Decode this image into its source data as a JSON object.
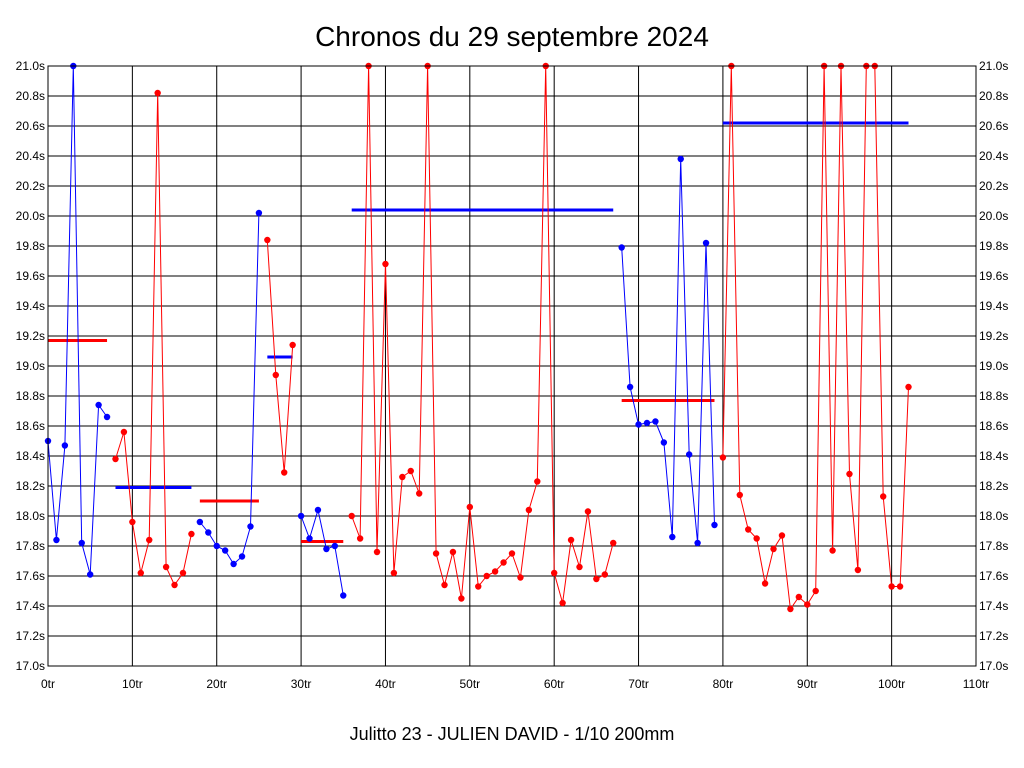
{
  "chart_data": {
    "type": "line",
    "title": "Chronos du 29 septembre 2024",
    "caption": "Julitto 23 - JULIEN DAVID - 1/10 200mm",
    "xlabel": "",
    "ylabel": "",
    "xlim": [
      0,
      110
    ],
    "ylim": [
      17.0,
      21.0
    ],
    "x_ticks": [
      "0tr",
      "10tr",
      "20tr",
      "30tr",
      "40tr",
      "50tr",
      "60tr",
      "70tr",
      "80tr",
      "90tr",
      "100tr",
      "110tr"
    ],
    "y_ticks": [
      "17.0s",
      "17.2s",
      "17.4s",
      "17.6s",
      "17.8s",
      "18.0s",
      "18.2s",
      "18.4s",
      "18.6s",
      "18.8s",
      "19.0s",
      "19.2s",
      "19.4s",
      "19.6s",
      "19.8s",
      "20.0s",
      "20.2s",
      "20.4s",
      "20.6s",
      "20.8s",
      "21.0s"
    ],
    "grid": true,
    "colors": {
      "blue": "#0000ff",
      "red": "#ff0000",
      "axis": "#000000",
      "grid": "#000000"
    },
    "series": [
      {
        "color": "#0000ff",
        "points": [
          [
            0,
            18.5
          ],
          [
            1,
            17.84
          ],
          [
            2,
            18.47
          ],
          [
            3,
            21.0
          ],
          [
            4,
            17.82
          ],
          [
            5,
            17.61
          ],
          [
            6,
            18.74
          ],
          [
            7,
            18.66
          ]
        ]
      },
      {
        "color": "#ff0000",
        "points": [
          [
            8,
            18.38
          ],
          [
            9,
            18.56
          ],
          [
            10,
            17.96
          ],
          [
            11,
            17.62
          ],
          [
            12,
            17.84
          ],
          [
            13,
            20.82
          ],
          [
            14,
            17.66
          ],
          [
            15,
            17.54
          ],
          [
            16,
            17.62
          ],
          [
            17,
            17.88
          ]
        ]
      },
      {
        "color": "#0000ff",
        "points": [
          [
            18,
            17.96
          ],
          [
            19,
            17.89
          ],
          [
            20,
            17.8
          ],
          [
            21,
            17.77
          ],
          [
            22,
            17.68
          ],
          [
            23,
            17.73
          ],
          [
            24,
            17.93
          ],
          [
            25,
            20.02
          ]
        ]
      },
      {
        "color": "#ff0000",
        "points": [
          [
            26,
            19.84
          ],
          [
            27,
            18.94
          ],
          [
            28,
            18.29
          ],
          [
            29,
            19.14
          ]
        ]
      },
      {
        "color": "#0000ff",
        "points": [
          [
            30,
            18.0
          ],
          [
            31,
            17.85
          ],
          [
            32,
            18.04
          ],
          [
            33,
            17.78
          ],
          [
            34,
            17.8
          ],
          [
            35,
            17.47
          ]
        ]
      },
      {
        "color": "#ff0000",
        "points": [
          [
            36,
            18.0
          ],
          [
            37,
            17.85
          ],
          [
            38,
            21.0
          ],
          [
            39,
            17.76
          ],
          [
            40,
            19.68
          ],
          [
            41,
            17.62
          ],
          [
            42,
            18.26
          ],
          [
            43,
            18.3
          ],
          [
            44,
            18.15
          ],
          [
            45,
            21.0
          ],
          [
            46,
            17.75
          ],
          [
            47,
            17.54
          ],
          [
            48,
            17.76
          ],
          [
            49,
            17.45
          ],
          [
            50,
            18.06
          ],
          [
            51,
            17.53
          ],
          [
            52,
            17.6
          ],
          [
            53,
            17.63
          ],
          [
            54,
            17.69
          ],
          [
            55,
            17.75
          ],
          [
            56,
            17.59
          ],
          [
            57,
            18.04
          ],
          [
            58,
            18.23
          ],
          [
            59,
            21.0
          ],
          [
            60,
            17.62
          ],
          [
            61,
            17.42
          ],
          [
            62,
            17.84
          ],
          [
            63,
            17.66
          ],
          [
            64,
            18.03
          ],
          [
            65,
            17.58
          ],
          [
            66,
            17.61
          ],
          [
            67,
            17.82
          ]
        ]
      },
      {
        "color": "#0000ff",
        "points": [
          [
            68,
            19.79
          ],
          [
            69,
            18.86
          ],
          [
            70,
            18.61
          ],
          [
            71,
            18.62
          ],
          [
            72,
            18.63
          ],
          [
            73,
            18.49
          ],
          [
            74,
            17.86
          ],
          [
            75,
            20.38
          ],
          [
            76,
            18.41
          ],
          [
            77,
            17.82
          ],
          [
            78,
            19.82
          ],
          [
            79,
            17.94
          ]
        ]
      },
      {
        "color": "#ff0000",
        "points": [
          [
            80,
            18.39
          ],
          [
            81,
            21.0
          ],
          [
            82,
            18.14
          ],
          [
            83,
            17.91
          ],
          [
            84,
            17.85
          ],
          [
            85,
            17.55
          ],
          [
            86,
            17.78
          ],
          [
            87,
            17.87
          ],
          [
            88,
            17.38
          ],
          [
            89,
            17.46
          ],
          [
            90,
            17.41
          ],
          [
            91,
            17.5
          ],
          [
            92,
            21.0
          ],
          [
            93,
            17.77
          ],
          [
            94,
            21.0
          ],
          [
            95,
            18.28
          ],
          [
            96,
            17.64
          ],
          [
            97,
            21.0
          ],
          [
            98,
            21.0
          ],
          [
            99,
            18.13
          ],
          [
            100,
            17.53
          ],
          [
            101,
            17.53
          ],
          [
            102,
            18.86
          ]
        ]
      }
    ],
    "averages": [
      {
        "color": "#ff0000",
        "x": [
          0,
          7
        ],
        "y": 19.17
      },
      {
        "color": "#0000ff",
        "x": [
          8,
          17
        ],
        "y": 18.19
      },
      {
        "color": "#ff0000",
        "x": [
          18,
          25
        ],
        "y": 18.1
      },
      {
        "color": "#0000ff",
        "x": [
          26,
          29
        ],
        "y": 19.06
      },
      {
        "color": "#ff0000",
        "x": [
          30,
          35
        ],
        "y": 17.83
      },
      {
        "color": "#0000ff",
        "x": [
          36,
          67
        ],
        "y": 20.04
      },
      {
        "color": "#ff0000",
        "x": [
          68,
          79
        ],
        "y": 18.77
      },
      {
        "color": "#0000ff",
        "x": [
          80,
          102
        ],
        "y": 20.62
      }
    ]
  }
}
